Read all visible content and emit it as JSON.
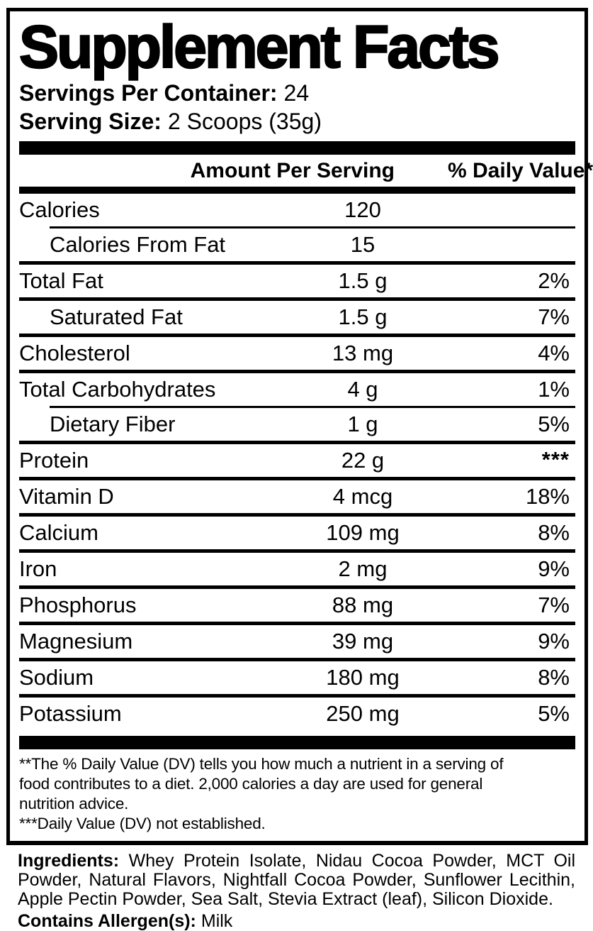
{
  "colors": {
    "ink": "#000000",
    "background": "#ffffff"
  },
  "title": "Supplement Facts",
  "servings_per_container": {
    "label": "Servings Per Container:",
    "value": "24"
  },
  "serving_size": {
    "label": "Serving Size:",
    "value": "2 Scoops (35g)"
  },
  "table": {
    "headers": {
      "amount": "Amount Per Serving",
      "dv": "% Daily Value**"
    },
    "rows": [
      {
        "label": "Calories",
        "amount": "120",
        "dv": ""
      },
      {
        "label": "Calories From Fat",
        "amount": "15",
        "dv": ""
      },
      {
        "label": "Total Fat",
        "amount": "1.5 g",
        "dv": "2%"
      },
      {
        "label": "Saturated Fat",
        "amount": "1.5 g",
        "dv": "7%"
      },
      {
        "label": "Cholesterol",
        "amount": "13 mg",
        "dv": "4%"
      },
      {
        "label": "Total Carbohydrates",
        "amount": "4 g",
        "dv": "1%"
      },
      {
        "label": "Dietary Fiber",
        "amount": "1 g",
        "dv": "5%"
      },
      {
        "label": "Protein",
        "amount": "22 g",
        "dv": "***"
      },
      {
        "label": "Vitamin D",
        "amount": "4 mcg",
        "dv": "18%"
      },
      {
        "label": "Calcium",
        "amount": "109 mg",
        "dv": "8%"
      },
      {
        "label": "Iron",
        "amount": "2 mg",
        "dv": "9%"
      },
      {
        "label": "Phosphorus",
        "amount": "88 mg",
        "dv": "7%"
      },
      {
        "label": "Magnesium",
        "amount": "39 mg",
        "dv": "9%"
      },
      {
        "label": "Sodium",
        "amount": "180 mg",
        "dv": "8%"
      },
      {
        "label": "Potassium",
        "amount": "250 mg",
        "dv": "5%"
      }
    ]
  },
  "footnotes": {
    "lines": [
      "**The % Daily Value (DV) tells you how much a nutrient in a serving of",
      "food contributes to a diet. 2,000 calories a day are used for general",
      "nutrition advice.",
      "***Daily Value (DV) not established."
    ]
  },
  "ingredients": {
    "label": "Ingredients:",
    "text": "Whey Protein Isolate, Nidau Cocoa Powder, MCT Oil Powder, Natural Flavors, Nightfall Cocoa Powder, Sunflower Lecithin, Apple Pectin Powder, Sea Salt, Stevia Extract (leaf), Silicon Dioxide."
  },
  "allergens": {
    "label": "Contains Allergen(s):",
    "value": "Milk"
  }
}
